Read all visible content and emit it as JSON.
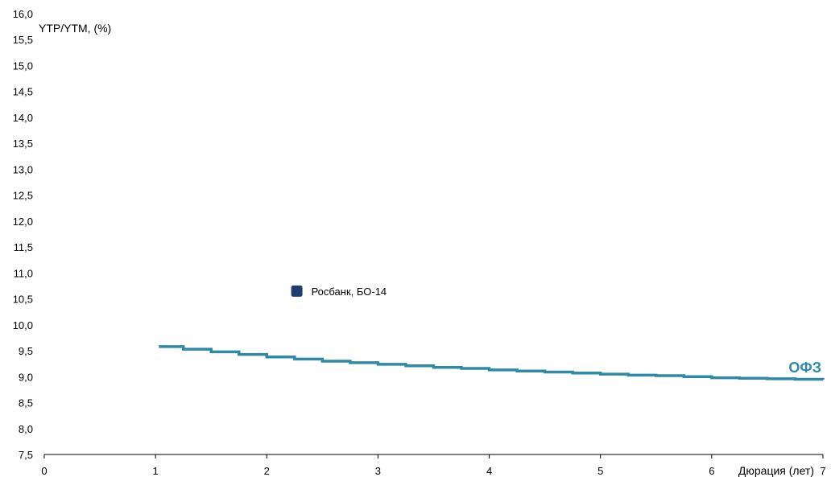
{
  "chart_data": {
    "type": "scatter",
    "title": "",
    "ylabel": "YTP/YTM, (%)",
    "xlabel": "Дюрация (лет)",
    "xlim": [
      0,
      7
    ],
    "ylim": [
      7.5,
      16.0
    ],
    "x_ticks": [
      "0",
      "1",
      "2",
      "3",
      "4",
      "5",
      "6",
      "7"
    ],
    "y_ticks": [
      "7,5",
      "8,0",
      "8,5",
      "9,0",
      "9,5",
      "10,0",
      "10,5",
      "11,0",
      "11,5",
      "12,0",
      "12,5",
      "13,0",
      "13,5",
      "14,0",
      "14,5",
      "15,0",
      "15,5",
      "16,0"
    ],
    "grid": false,
    "points": [
      {
        "label": "Росбанк, БО-14",
        "x": 2.27,
        "y": 10.65,
        "color": "#1f3e6e"
      }
    ],
    "series": [
      {
        "name": "ОФЗ",
        "type": "line",
        "color": "#2e8aa6",
        "points": [
          [
            1.03,
            9.58
          ],
          [
            1.25,
            9.53
          ],
          [
            1.5,
            9.48
          ],
          [
            1.75,
            9.43
          ],
          [
            2.0,
            9.38
          ],
          [
            2.25,
            9.34
          ],
          [
            2.5,
            9.3
          ],
          [
            2.75,
            9.27
          ],
          [
            3.0,
            9.24
          ],
          [
            3.25,
            9.21
          ],
          [
            3.5,
            9.18
          ],
          [
            3.75,
            9.16
          ],
          [
            4.0,
            9.13
          ],
          [
            4.25,
            9.11
          ],
          [
            4.5,
            9.09
          ],
          [
            4.75,
            9.07
          ],
          [
            5.0,
            9.05
          ],
          [
            5.25,
            9.03
          ],
          [
            5.5,
            9.02
          ],
          [
            5.75,
            9.0
          ],
          [
            6.0,
            8.98
          ],
          [
            6.25,
            8.97
          ],
          [
            6.5,
            8.96
          ],
          [
            6.75,
            8.95
          ],
          [
            7.0,
            8.94
          ]
        ]
      }
    ]
  }
}
